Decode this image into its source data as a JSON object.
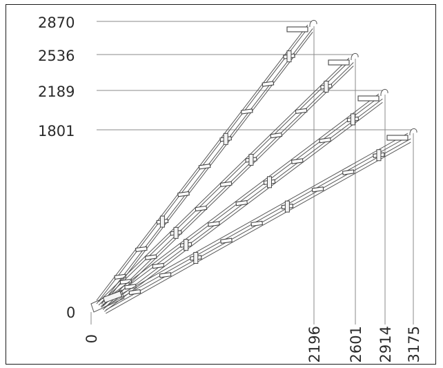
{
  "heights": [
    "2870",
    "2536",
    "2189",
    "1801"
  ],
  "origin_height": "0",
  "origin_length": "0",
  "lengths": [
    "2196",
    "2601",
    "2914",
    "3175"
  ],
  "stairs": [
    {
      "height": 2870,
      "length": 2196
    },
    {
      "height": 2536,
      "length": 2601
    },
    {
      "height": 2189,
      "length": 2914
    },
    {
      "height": 1801,
      "length": 3175
    }
  ],
  "colors": {
    "lines": "#555555",
    "guides": "#8a8a8a",
    "text": "#2a2a2a",
    "border": "#1a1a1a"
  }
}
